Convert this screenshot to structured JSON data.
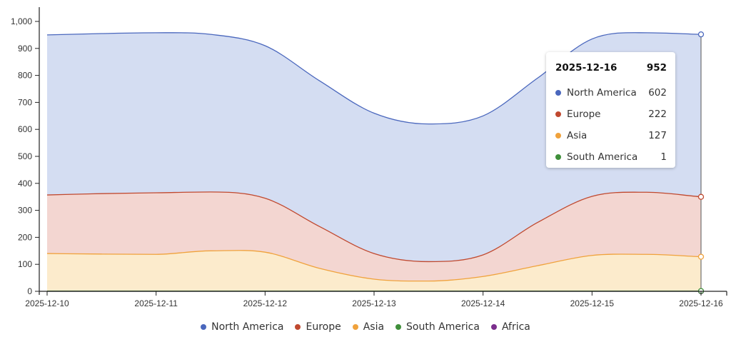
{
  "chart_data": {
    "type": "area",
    "stacked": true,
    "x": [
      "2025-12-10 00:00",
      "2025-12-10 12:00",
      "2025-12-11 00:00",
      "2025-12-11 12:00",
      "2025-12-12 00:00",
      "2025-12-12 12:00",
      "2025-12-13 00:00",
      "2025-12-13 12:00",
      "2025-12-14 00:00",
      "2025-12-14 12:00",
      "2025-12-15 00:00",
      "2025-12-15 12:00",
      "2025-12-16 00:00"
    ],
    "x_tick_labels": [
      "2025-12-10",
      "2025-12-11",
      "2025-12-12",
      "2025-12-13",
      "2025-12-14",
      "2025-12-15",
      "2025-12-16"
    ],
    "y_tick_labels": [
      "0",
      "100",
      "200",
      "300",
      "400",
      "500",
      "600",
      "700",
      "800",
      "900",
      "1,000"
    ],
    "ylim": [
      0,
      1050
    ],
    "grid": false,
    "legend_position": "bottom",
    "series": [
      {
        "name": "Africa",
        "color": "#7b2e8c",
        "fill": "#e6d3ea",
        "values": [
          0,
          0,
          0,
          0,
          0,
          0,
          0,
          0,
          0,
          0,
          0,
          0,
          0
        ]
      },
      {
        "name": "South America",
        "color": "#3f8f3a",
        "fill": "#d5ead3",
        "values": [
          1,
          1,
          1,
          1,
          1,
          1,
          1,
          1,
          1,
          1,
          1,
          1,
          1
        ]
      },
      {
        "name": "Asia",
        "color": "#f0a23c",
        "fill": "#fcebcc",
        "values": [
          139,
          137,
          136,
          149,
          144,
          84,
          44,
          37,
          54,
          94,
          132,
          136,
          127
        ]
      },
      {
        "name": "Europe",
        "color": "#c0492f",
        "fill": "#f3d6d1",
        "values": [
          217,
          224,
          228,
          218,
          200,
          155,
          95,
          72,
          80,
          160,
          219,
          230,
          222
        ]
      },
      {
        "name": "North America",
        "color": "#4a67bd",
        "fill": "#d4ddf2",
        "values": [
          593,
          593,
          593,
          584,
          565,
          540,
          520,
          510,
          515,
          535,
          583,
          591,
          602
        ]
      }
    ],
    "legend": [
      "North America",
      "Europe",
      "Asia",
      "South America",
      "Africa"
    ],
    "tooltip": {
      "title": "2025-12-16",
      "total": "952",
      "rows": [
        {
          "label": "North America",
          "value": "602",
          "color": "#4a67bd"
        },
        {
          "label": "Europe",
          "value": "222",
          "color": "#c0492f"
        },
        {
          "label": "Asia",
          "value": "127",
          "color": "#f0a23c"
        },
        {
          "label": "South America",
          "value": "1",
          "color": "#3f8f3a"
        }
      ]
    }
  }
}
